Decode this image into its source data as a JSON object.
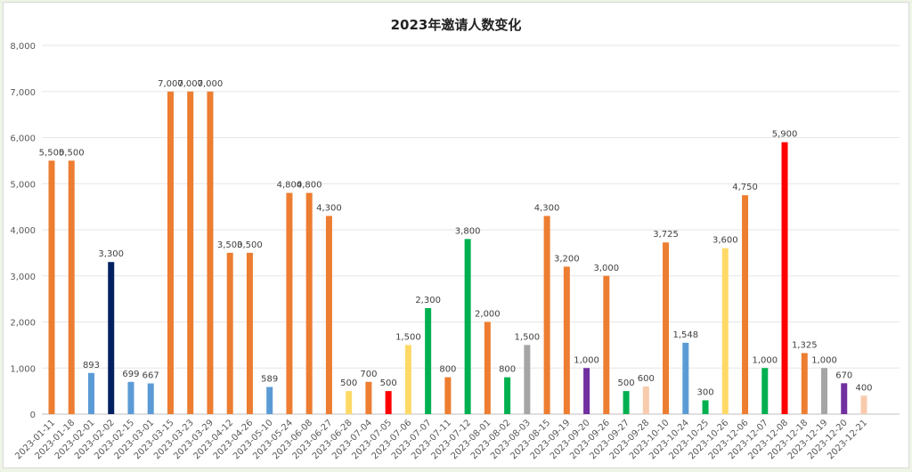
{
  "chart_data": {
    "type": "bar",
    "title": "2023年邀请人数变化",
    "xlabel": "",
    "ylabel": "",
    "ylim": [
      0,
      8000
    ],
    "yticks": [
      "0",
      "1,000",
      "2,000",
      "3,000",
      "4,000",
      "5,000",
      "6,000",
      "7,000",
      "8,000"
    ],
    "grid": true,
    "legend": "none",
    "categories": [
      "2023-01-11",
      "2023-01-18",
      "2023-02-01",
      "2023-02-02",
      "2023-02-15",
      "2023-03-01",
      "2023-03-15",
      "2023-03-23",
      "2023-03-29",
      "2023-04-12",
      "2023-04-26",
      "2023-05-10",
      "2023-05-24",
      "2023-06-08",
      "2023-06-27",
      "2023-06-28",
      "2023-07-04",
      "2023-07-05",
      "2023-07-06",
      "2023-07-07",
      "2023-07-11",
      "2023-07-12",
      "2023-08-01",
      "2023-08-02",
      "2023-08-03",
      "2023-08-15",
      "2023-09-19",
      "2023-09-20",
      "2023-09-26",
      "2023-09-27",
      "2023-09-28",
      "2023-10-10",
      "2023-10-24",
      "2023-10-25",
      "2023-10-26",
      "2023-12-06",
      "2023-12-07",
      "2023-12-08",
      "2023-12-18",
      "2023-12-19",
      "2023-12-20",
      "2023-12-21"
    ],
    "values": [
      5500,
      5500,
      893,
      3300,
      699,
      667,
      7000,
      7000,
      7000,
      3500,
      3500,
      589,
      4800,
      4800,
      4300,
      500,
      700,
      500,
      1500,
      2300,
      800,
      3800,
      2000,
      800,
      1500,
      4300,
      3200,
      1000,
      3000,
      500,
      600,
      3725,
      1548,
      300,
      3600,
      4750,
      1000,
      5900,
      1325,
      1000,
      670,
      400
    ],
    "labels": [
      "5,500",
      "5,500",
      "893",
      "3,300",
      "699",
      "667",
      "7,000",
      "7,000",
      "7,000",
      "3,500",
      "3,500",
      "589",
      "4,800",
      "4,800",
      "4,300",
      "500",
      "700",
      "500",
      "1,500",
      "2,300",
      "800",
      "3,800",
      "2,000",
      "800",
      "1,500",
      "4,300",
      "3,200",
      "1,000",
      "3,000",
      "500",
      "600",
      "3,725",
      "1,548",
      "300",
      "3,600",
      "4,750",
      "1,000",
      "5,900",
      "1,325",
      "1,000",
      "670",
      "400"
    ],
    "colors": [
      "#ed7d31",
      "#ed7d31",
      "#5b9bd5",
      "#002060",
      "#5b9bd5",
      "#5b9bd5",
      "#ed7d31",
      "#ed7d31",
      "#ed7d31",
      "#ed7d31",
      "#ed7d31",
      "#5b9bd5",
      "#ed7d31",
      "#ed7d31",
      "#ed7d31",
      "#ffd966",
      "#ed7d31",
      "#ff0000",
      "#ffd966",
      "#00b050",
      "#ed7d31",
      "#00b050",
      "#ed7d31",
      "#00b050",
      "#a5a5a5",
      "#ed7d31",
      "#ed7d31",
      "#7030a0",
      "#ed7d31",
      "#00b050",
      "#f8cbad",
      "#ed7d31",
      "#5b9bd5",
      "#00b050",
      "#ffd966",
      "#ed7d31",
      "#00b050",
      "#ff0000",
      "#ed7d31",
      "#a5a5a5",
      "#7030a0",
      "#f8cbad"
    ]
  }
}
